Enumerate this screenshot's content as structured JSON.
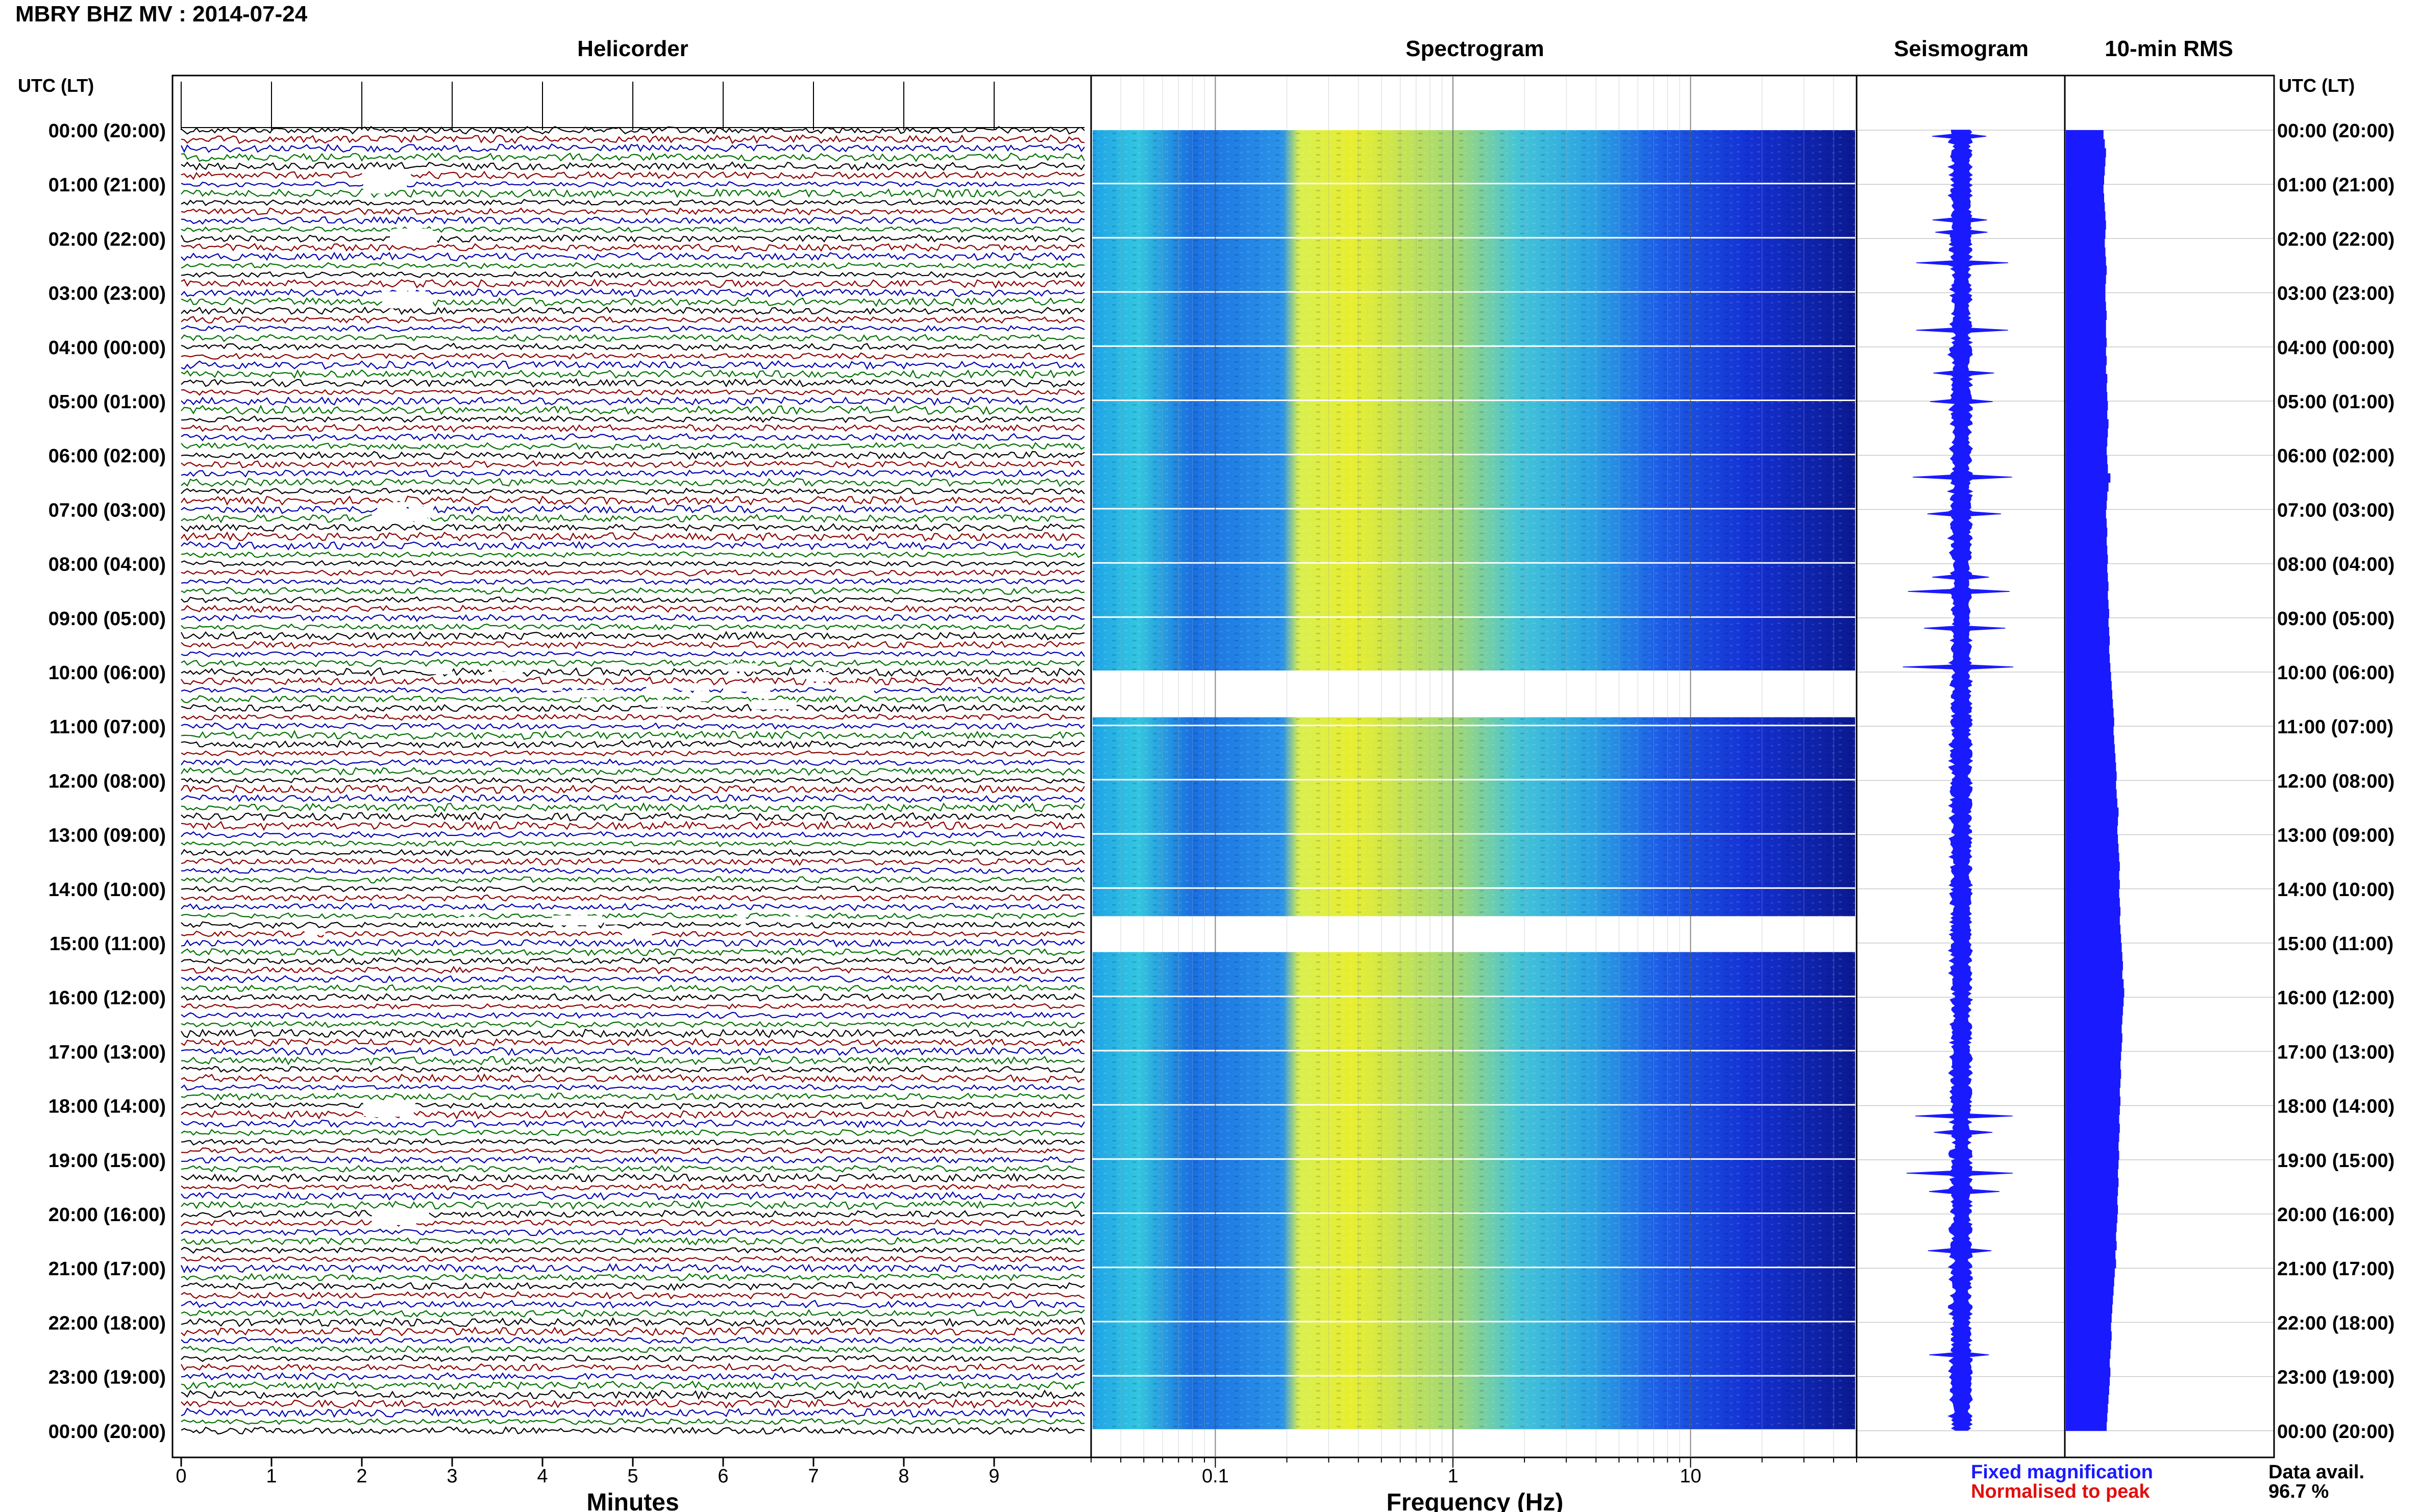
{
  "header": {
    "title": "MBRY BHZ MV : 2014-07-24"
  },
  "panels": {
    "helicorder": "Helicorder",
    "spectrogram": "Spectrogram",
    "seismogram": "Seismogram",
    "rms": "10-min RMS"
  },
  "time_axis_label": "UTC (LT)",
  "time_labels": [
    "00:00 (20:00)",
    "01:00 (21:00)",
    "02:00 (22:00)",
    "03:00 (23:00)",
    "04:00 (00:00)",
    "05:00 (01:00)",
    "06:00 (02:00)",
    "07:00 (03:00)",
    "08:00 (04:00)",
    "09:00 (05:00)",
    "10:00 (06:00)",
    "11:00 (07:00)",
    "12:00 (08:00)",
    "13:00 (09:00)",
    "14:00 (10:00)",
    "15:00 (11:00)",
    "16:00 (12:00)",
    "17:00 (13:00)",
    "18:00 (14:00)",
    "19:00 (15:00)",
    "20:00 (16:00)",
    "21:00 (17:00)",
    "22:00 (18:00)",
    "23:00 (19:00)",
    "00:00 (20:00)"
  ],
  "footer": {
    "minutes_label": "Minutes",
    "frequency_label": "Frequency (Hz)",
    "legend_fixed": "Fixed magnification",
    "legend_norm": "Normalised to peak",
    "data_avail_label": "Data avail.",
    "data_avail_value": "96.7 %"
  },
  "colors": {
    "fixed": "#1a1aff",
    "normalised": "#e01010",
    "rms_bar": "#1a1aff",
    "trace_colors": [
      "#000000",
      "#8b0000",
      "#0000b0",
      "#007000"
    ]
  },
  "chart_data": [
    {
      "type": "line",
      "name": "helicorder",
      "xlabel": "Minutes",
      "xticks": [
        "0",
        "1",
        "2",
        "3",
        "4",
        "5",
        "6",
        "7",
        "8",
        "9"
      ],
      "xlim": [
        0,
        10
      ],
      "traces_per_hour": 6,
      "hours": 24
    },
    {
      "type": "heatmap",
      "name": "spectrogram",
      "xlabel": "Frequency (Hz)",
      "xscale": "log",
      "xticks": [
        "0.1",
        "1",
        "10"
      ],
      "xlim": [
        0.03,
        50
      ],
      "gaps_hours": [
        [
          10.0,
          10.8
        ],
        [
          14.5,
          15.1
        ]
      ]
    },
    {
      "type": "line",
      "name": "seismogram"
    },
    {
      "type": "bar",
      "name": "10-min RMS",
      "orientation": "horizontal",
      "bins_per_hour": 6,
      "values": [
        0.6,
        0.62,
        0.64,
        0.63,
        0.62,
        0.61,
        0.6,
        0.61,
        0.62,
        0.63,
        0.64,
        0.63,
        0.62,
        0.63,
        0.64,
        0.65,
        0.64,
        0.63,
        0.63,
        0.64,
        0.65,
        0.64,
        0.64,
        0.65,
        0.64,
        0.65,
        0.64,
        0.66,
        0.65,
        0.66,
        0.67,
        0.66,
        0.68,
        0.67,
        0.66,
        0.65,
        0.66,
        0.67,
        0.71,
        0.68,
        0.66,
        0.65,
        0.64,
        0.65,
        0.66,
        0.65,
        0.66,
        0.67,
        0.66,
        0.67,
        0.68,
        0.67,
        0.68,
        0.69,
        0.68,
        0.69,
        0.7,
        0.69,
        0.7,
        0.71,
        0.72,
        0.73,
        0.74,
        0.75,
        0.76,
        0.77,
        0.76,
        0.77,
        0.78,
        0.79,
        0.8,
        0.81,
        0.8,
        0.81,
        0.82,
        0.84,
        0.83,
        0.82,
        0.83,
        0.84,
        0.85,
        0.86,
        0.85,
        0.86,
        0.85,
        0.86,
        0.87,
        0.86,
        0.87,
        0.88,
        0.89,
        0.9,
        0.91,
        0.9,
        0.92,
        0.93,
        0.92,
        0.91,
        0.9,
        0.89,
        0.9,
        0.89,
        0.88,
        0.87,
        0.88,
        0.87,
        0.86,
        0.87,
        0.86,
        0.85,
        0.86,
        0.85,
        0.84,
        0.85,
        0.84,
        0.83,
        0.84,
        0.83,
        0.82,
        0.83,
        0.82,
        0.81,
        0.8,
        0.81,
        0.79,
        0.8,
        0.78,
        0.77,
        0.76,
        0.75,
        0.74,
        0.73,
        0.72,
        0.73,
        0.72,
        0.71,
        0.7,
        0.71,
        0.7,
        0.69,
        0.68,
        0.67,
        0.66,
        0.65
      ]
    }
  ]
}
